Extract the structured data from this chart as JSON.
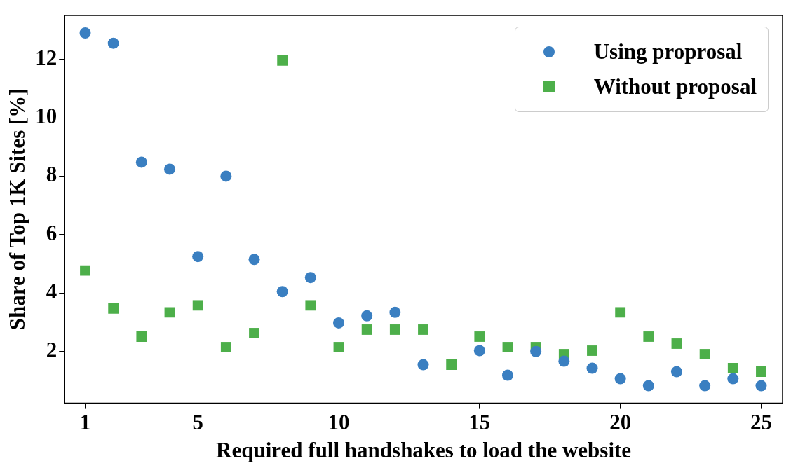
{
  "chart_data": {
    "type": "scatter",
    "xlabel": "Required full handshakes to load the website",
    "ylabel": "Share of Top 1K Sites [%]",
    "x": [
      1,
      2,
      3,
      4,
      5,
      6,
      7,
      8,
      9,
      10,
      11,
      12,
      13,
      14,
      15,
      16,
      17,
      18,
      19,
      20,
      21,
      22,
      23,
      24,
      25
    ],
    "series": [
      {
        "name": "Using proprosal",
        "color": "#3a7fc1",
        "marker": "circle",
        "values": [
          12.9,
          12.55,
          8.48,
          8.24,
          5.25,
          8.0,
          5.15,
          4.05,
          4.53,
          2.98,
          3.22,
          3.34,
          1.55,
          null,
          2.03,
          1.19,
          2.0,
          1.67,
          1.43,
          1.07,
          0.83,
          1.31,
          0.83,
          1.07,
          0.83
        ]
      },
      {
        "name": "Without proposal",
        "color": "#4daf4a",
        "marker": "square",
        "values": [
          4.77,
          3.47,
          2.51,
          3.34,
          3.58,
          2.15,
          2.63,
          11.96,
          3.58,
          2.15,
          2.75,
          2.75,
          2.75,
          1.55,
          2.51,
          2.15,
          2.15,
          1.91,
          2.03,
          3.34,
          2.51,
          2.27,
          1.91,
          1.43,
          1.31
        ]
      }
    ],
    "xlim": [
      0.27,
      25.76
    ],
    "xticks": [
      1,
      5,
      10,
      15,
      20,
      25
    ],
    "ylim": [
      0.23,
      13.5
    ],
    "yticks": [
      2,
      4,
      6,
      8,
      10,
      12
    ],
    "grid": false,
    "legend": "top right"
  }
}
